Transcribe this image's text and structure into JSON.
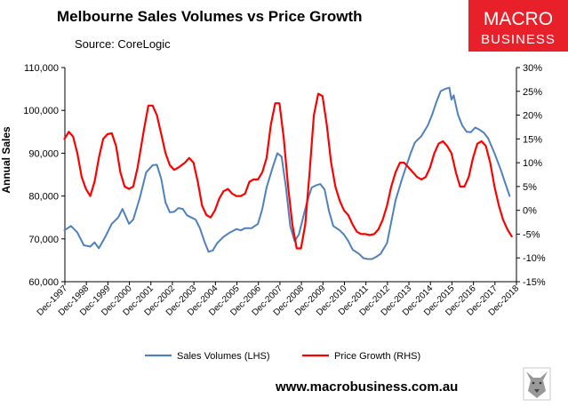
{
  "header": {
    "title": "Melbourne Sales Volumes vs Price Growth",
    "source": "Source: CoreLogic"
  },
  "brand": {
    "line1": "MACRO",
    "line2": "BUSINESS",
    "color": "#e8202a",
    "website": "www.macrobusiness.com.au",
    "wolf_icon": "wolf-logo-icon"
  },
  "chart_data": {
    "type": "line",
    "x_labels": [
      "Dec-1997",
      "Dec-1998",
      "Dec-1999",
      "Dec-2000",
      "Dec-2001",
      "Dec-2002",
      "Dec-2003",
      "Dec-2004",
      "Dec-2005",
      "Dec-2006",
      "Dec-2007",
      "Dec-2008",
      "Dec-2009",
      "Dec-2010",
      "Dec-2011",
      "Dec-2012",
      "Dec-2013",
      "Dec-2014",
      "Dec-2015",
      "Dec-2016",
      "Dec-2017",
      "Dec-2018"
    ],
    "x_range": [
      1997.92,
      2018.92
    ],
    "ylabel": "Annual Sales",
    "ylim_left": [
      60000,
      110000
    ],
    "yticks_left": [
      "60,000",
      "70,000",
      "80,000",
      "90,000",
      "100,000",
      "110,000"
    ],
    "ylim_right": [
      -15,
      30
    ],
    "yticks_right": [
      "-15%",
      "-10%",
      "-5%",
      "0%",
      "5%",
      "10%",
      "15%",
      "20%",
      "25%",
      "30%"
    ],
    "grid": false,
    "legend_position": "bottom",
    "series": [
      {
        "name": "Sales Volumes (LHS)",
        "axis": "left",
        "color": "#4f81bd",
        "points": [
          [
            1997.9,
            72000
          ],
          [
            1998.2,
            73000
          ],
          [
            1998.5,
            71500
          ],
          [
            1998.8,
            68500
          ],
          [
            1999.1,
            68200
          ],
          [
            1999.3,
            69200
          ],
          [
            1999.5,
            67800
          ],
          [
            1999.8,
            70500
          ],
          [
            2000.1,
            73500
          ],
          [
            2000.4,
            75000
          ],
          [
            2000.6,
            77000
          ],
          [
            2000.9,
            73500
          ],
          [
            2001.1,
            74500
          ],
          [
            2001.4,
            79500
          ],
          [
            2001.7,
            85500
          ],
          [
            2002.0,
            87200
          ],
          [
            2002.2,
            87300
          ],
          [
            2002.4,
            84000
          ],
          [
            2002.6,
            78500
          ],
          [
            2002.8,
            76200
          ],
          [
            2003.0,
            76300
          ],
          [
            2003.2,
            77200
          ],
          [
            2003.4,
            77000
          ],
          [
            2003.6,
            75500
          ],
          [
            2003.8,
            75000
          ],
          [
            2004.0,
            74500
          ],
          [
            2004.2,
            72500
          ],
          [
            2004.4,
            69500
          ],
          [
            2004.6,
            67000
          ],
          [
            2004.8,
            67300
          ],
          [
            2005.0,
            69000
          ],
          [
            2005.3,
            70500
          ],
          [
            2005.6,
            71500
          ],
          [
            2005.9,
            72300
          ],
          [
            2006.1,
            72000
          ],
          [
            2006.3,
            72500
          ],
          [
            2006.6,
            72500
          ],
          [
            2006.9,
            73500
          ],
          [
            2007.1,
            77000
          ],
          [
            2007.3,
            82000
          ],
          [
            2007.6,
            87000
          ],
          [
            2007.8,
            90000
          ],
          [
            2008.0,
            89200
          ],
          [
            2008.2,
            82000
          ],
          [
            2008.4,
            73000
          ],
          [
            2008.6,
            69500
          ],
          [
            2008.8,
            71000
          ],
          [
            2009.0,
            75000
          ],
          [
            2009.2,
            79000
          ],
          [
            2009.4,
            82000
          ],
          [
            2009.6,
            82500
          ],
          [
            2009.8,
            82800
          ],
          [
            2010.0,
            81500
          ],
          [
            2010.2,
            76500
          ],
          [
            2010.4,
            73000
          ],
          [
            2010.7,
            72000
          ],
          [
            2010.9,
            71000
          ],
          [
            2011.1,
            69500
          ],
          [
            2011.3,
            67500
          ],
          [
            2011.6,
            66500
          ],
          [
            2011.8,
            65500
          ],
          [
            2012.0,
            65300
          ],
          [
            2012.2,
            65300
          ],
          [
            2012.4,
            65800
          ],
          [
            2012.6,
            66500
          ],
          [
            2012.9,
            69000
          ],
          [
            2013.1,
            74000
          ],
          [
            2013.3,
            79000
          ],
          [
            2013.6,
            84000
          ],
          [
            2013.8,
            87000
          ],
          [
            2014.0,
            90000
          ],
          [
            2014.2,
            92500
          ],
          [
            2014.5,
            94000
          ],
          [
            2014.8,
            96500
          ],
          [
            2015.0,
            99000
          ],
          [
            2015.2,
            102000
          ],
          [
            2015.4,
            104500
          ],
          [
            2015.6,
            105000
          ],
          [
            2015.8,
            105300
          ],
          [
            2015.9,
            102500
          ],
          [
            2016.0,
            103500
          ],
          [
            2016.2,
            99000
          ],
          [
            2016.4,
            96500
          ],
          [
            2016.6,
            95000
          ],
          [
            2016.8,
            94900
          ],
          [
            2017.0,
            96000
          ],
          [
            2017.2,
            95500
          ],
          [
            2017.4,
            94800
          ],
          [
            2017.6,
            93500
          ],
          [
            2017.9,
            90000
          ],
          [
            2018.2,
            86000
          ],
          [
            2018.4,
            83000
          ],
          [
            2018.6,
            80000
          ]
        ]
      },
      {
        "name": "Price Growth (RHS)",
        "axis": "right",
        "color": "#ff0000",
        "points": [
          [
            1997.9,
            15.0
          ],
          [
            1998.1,
            16.5
          ],
          [
            1998.3,
            15.5
          ],
          [
            1998.5,
            12.0
          ],
          [
            1998.7,
            7.0
          ],
          [
            1998.9,
            4.5
          ],
          [
            1999.1,
            3.0
          ],
          [
            1999.3,
            6.0
          ],
          [
            1999.5,
            11.0
          ],
          [
            1999.7,
            15.0
          ],
          [
            1999.9,
            16.0
          ],
          [
            2000.1,
            16.2
          ],
          [
            2000.3,
            13.5
          ],
          [
            2000.5,
            8.0
          ],
          [
            2000.7,
            5.0
          ],
          [
            2000.9,
            4.5
          ],
          [
            2001.1,
            5.0
          ],
          [
            2001.3,
            9.0
          ],
          [
            2001.6,
            17.0
          ],
          [
            2001.8,
            22.0
          ],
          [
            2002.0,
            22.0
          ],
          [
            2002.2,
            20.0
          ],
          [
            2002.4,
            16.0
          ],
          [
            2002.6,
            12.0
          ],
          [
            2002.8,
            9.5
          ],
          [
            2003.0,
            8.5
          ],
          [
            2003.2,
            9.0
          ],
          [
            2003.5,
            10.0
          ],
          [
            2003.7,
            11.0
          ],
          [
            2003.9,
            10.0
          ],
          [
            2004.1,
            6.0
          ],
          [
            2004.3,
            1.0
          ],
          [
            2004.5,
            -1.0
          ],
          [
            2004.7,
            -1.5
          ],
          [
            2004.9,
            0.0
          ],
          [
            2005.1,
            2.5
          ],
          [
            2005.3,
            4.0
          ],
          [
            2005.5,
            4.5
          ],
          [
            2005.7,
            3.5
          ],
          [
            2005.9,
            3.0
          ],
          [
            2006.1,
            3.0
          ],
          [
            2006.3,
            3.5
          ],
          [
            2006.5,
            6.0
          ],
          [
            2006.7,
            6.5
          ],
          [
            2006.9,
            6.5
          ],
          [
            2007.1,
            8.0
          ],
          [
            2007.3,
            11.0
          ],
          [
            2007.5,
            18.0
          ],
          [
            2007.7,
            22.5
          ],
          [
            2007.9,
            22.5
          ],
          [
            2008.1,
            15.0
          ],
          [
            2008.3,
            5.0
          ],
          [
            2008.5,
            -3.0
          ],
          [
            2008.7,
            -8.0
          ],
          [
            2008.9,
            -8.0
          ],
          [
            2009.1,
            -3.0
          ],
          [
            2009.3,
            8.0
          ],
          [
            2009.5,
            20.0
          ],
          [
            2009.7,
            24.5
          ],
          [
            2009.9,
            24.0
          ],
          [
            2010.1,
            18.0
          ],
          [
            2010.3,
            10.0
          ],
          [
            2010.5,
            5.0
          ],
          [
            2010.7,
            2.0
          ],
          [
            2010.9,
            0.0
          ],
          [
            2011.1,
            -1.0
          ],
          [
            2011.3,
            -3.0
          ],
          [
            2011.5,
            -4.5
          ],
          [
            2011.7,
            -5.0
          ],
          [
            2011.9,
            -5.0
          ],
          [
            2012.1,
            -5.2
          ],
          [
            2012.3,
            -5.0
          ],
          [
            2012.5,
            -4.0
          ],
          [
            2012.7,
            -2.0
          ],
          [
            2012.9,
            1.0
          ],
          [
            2013.1,
            5.0
          ],
          [
            2013.3,
            8.0
          ],
          [
            2013.5,
            10.0
          ],
          [
            2013.7,
            10.0
          ],
          [
            2013.9,
            9.0
          ],
          [
            2014.1,
            8.0
          ],
          [
            2014.3,
            7.0
          ],
          [
            2014.5,
            6.5
          ],
          [
            2014.7,
            7.0
          ],
          [
            2014.9,
            9.0
          ],
          [
            2015.1,
            12.0
          ],
          [
            2015.3,
            14.0
          ],
          [
            2015.5,
            14.5
          ],
          [
            2015.7,
            13.5
          ],
          [
            2015.9,
            12.0
          ],
          [
            2016.1,
            8.0
          ],
          [
            2016.3,
            5.0
          ],
          [
            2016.5,
            5.0
          ],
          [
            2016.7,
            7.0
          ],
          [
            2016.9,
            11.0
          ],
          [
            2017.1,
            14.0
          ],
          [
            2017.3,
            14.5
          ],
          [
            2017.5,
            13.5
          ],
          [
            2017.7,
            10.0
          ],
          [
            2017.9,
            5.0
          ],
          [
            2018.1,
            1.0
          ],
          [
            2018.3,
            -2.0
          ],
          [
            2018.5,
            -4.0
          ],
          [
            2018.7,
            -5.5
          ]
        ]
      }
    ]
  }
}
